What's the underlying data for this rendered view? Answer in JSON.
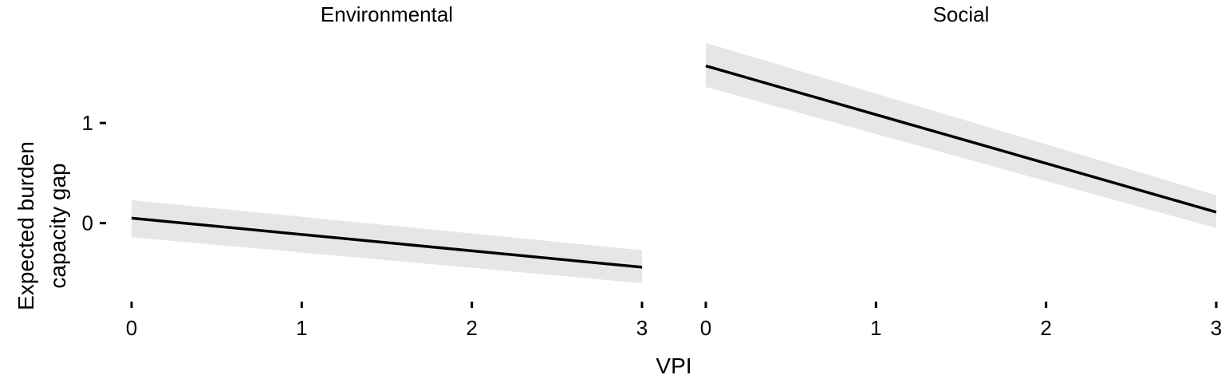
{
  "chart_data": {
    "type": "line",
    "xlabel": "VPI",
    "ylabel_lines": [
      "Expected burden",
      "capacity  gap"
    ],
    "xlim": [
      0,
      3
    ],
    "ylim": [
      -0.72,
      1.75
    ],
    "x_ticks": [
      0,
      1,
      2,
      3
    ],
    "y_ticks": [
      0,
      1
    ],
    "grid": false,
    "colors": {
      "line": "#000000",
      "ribbon": "#e6e6e6"
    },
    "panels": [
      {
        "title": "Environmental",
        "series": [
          {
            "x": [
              0,
              3
            ],
            "y": [
              0.05,
              -0.44
            ],
            "lower": [
              -0.14,
              -0.6
            ],
            "upper": [
              0.23,
              -0.27
            ]
          }
        ]
      },
      {
        "title": "Social",
        "series": [
          {
            "x": [
              0,
              3
            ],
            "y": [
              1.57,
              0.11
            ],
            "lower": [
              1.36,
              -0.05
            ],
            "upper": [
              1.8,
              0.28
            ]
          }
        ]
      }
    ]
  }
}
